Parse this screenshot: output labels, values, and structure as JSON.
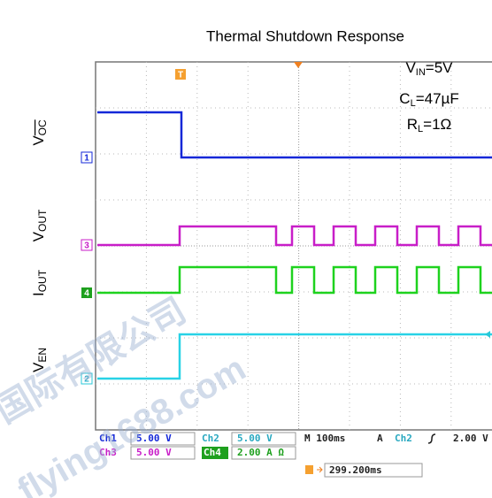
{
  "title": "Thermal Shutdown Response",
  "annotations": [
    {
      "main": "V",
      "sub": "IN",
      "rest": "=5V"
    },
    {
      "main": "C",
      "sub": "L",
      "rest": "=47µF"
    },
    {
      "main": "R",
      "sub": "L",
      "rest": "=1Ω"
    }
  ],
  "signal_labels": [
    {
      "main": "V",
      "sub": "OC"
    },
    {
      "main": "V",
      "sub": "OUT"
    },
    {
      "main": "I",
      "sub": "OUT"
    },
    {
      "main": "V",
      "sub": "EN"
    }
  ],
  "channel_markers": [
    "1",
    "3",
    "4",
    "2"
  ],
  "trigger_marker": "T",
  "status": {
    "ch1": "Ch1",
    "ch1_scale": "5.00 V",
    "ch2": "Ch2",
    "ch2_scale": "5.00 V",
    "timebase": "M 100ms",
    "trigger_mode": "A",
    "trigger_source": "Ch2",
    "trigger_level": "2.00 V",
    "ch3": "Ch3",
    "ch3_scale": "5.00 V",
    "ch4": "Ch4",
    "ch4_scale": "2.00 A Ω",
    "position": "299.200ms"
  },
  "watermark": [
    "国际有限公司",
    "flying1688.com"
  ]
}
